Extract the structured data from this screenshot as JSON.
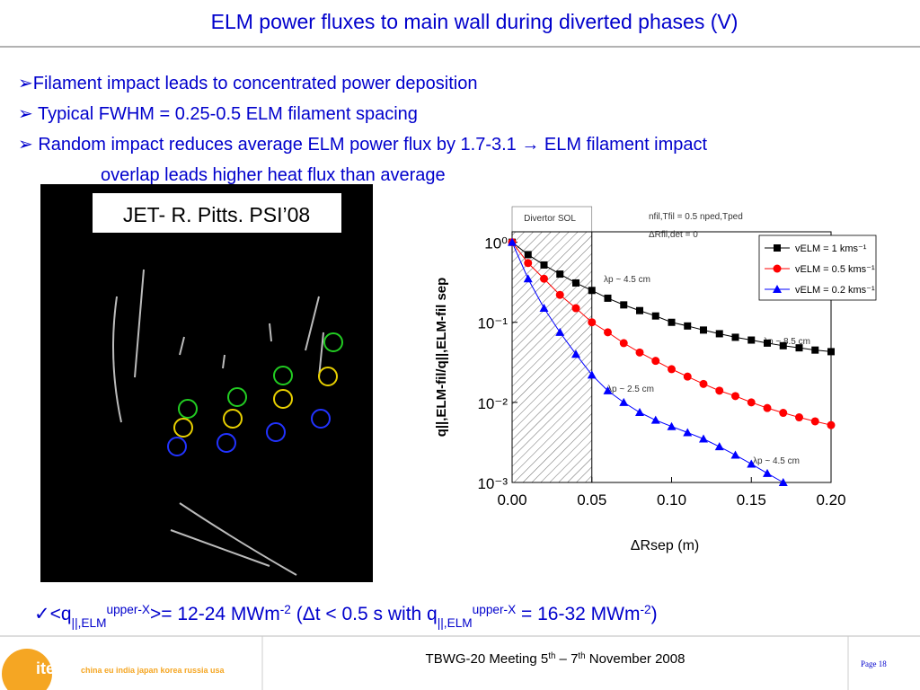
{
  "title": "ELM power fluxes to main wall during diverted phases (V)",
  "bullets": [
    [
      "➢Filament impact leads to concentrated power deposition"
    ],
    [
      "➢ Typical FWHM = 0.25-0.5 ELM filament spacing"
    ],
    [
      "➢ Random impact reduces average ELM power flux by 1.7-3.1 → ELM filament impact",
      "overlap leads higher heat flux than average"
    ]
  ],
  "image_label": "JET- R. Pitts. PSI’08",
  "result_line": [
    {
      "t": "✓<q"
    },
    {
      "t": "||,ELM",
      "pos": "sub"
    },
    {
      "t": "upper-X",
      "pos": "sup"
    },
    {
      "t": ">= 12-24 MWm"
    },
    {
      "t": "-2",
      "pos": "sup"
    },
    {
      "t": " (Δt < 0.5 s with q"
    },
    {
      "t": "||,ELM",
      "pos": "sub"
    },
    {
      "t": "upper-X",
      "pos": "sup"
    },
    {
      "t": " = 16-32 MWm"
    },
    {
      "t": "-2",
      "pos": "sup"
    },
    {
      "t": ")"
    }
  ],
  "footer": {
    "logo": "iter",
    "partners": "china eu india japan korea russia usa",
    "meeting": [
      {
        "t": "TBWG-20 Meeting 5"
      },
      {
        "t": "th",
        "pos": "sup"
      },
      {
        "t": " – 7"
      },
      {
        "t": "th",
        "pos": "sup"
      },
      {
        "t": " November 2008"
      }
    ],
    "page": "Page 18"
  },
  "chart_data": {
    "type": "line",
    "log_y": true,
    "xlabel": "ΔRsep (m)",
    "ylabel": "q||,ELM-fil/q||,ELM-fil sep",
    "annotations": [
      "Divertor SOL",
      "nfil,Tfil = 0.5 nped,Tped",
      "ΔRfil,det = 0",
      "λp ~ 4.5 cm",
      "λp ~ 8.5 cm",
      "λp ~ 2.5 cm",
      "λp ~ 4.5 cm"
    ],
    "sol_region": [
      0,
      0.05
    ],
    "x": [
      0,
      0.01,
      0.02,
      0.03,
      0.04,
      0.05,
      0.06,
      0.07,
      0.08,
      0.09,
      0.1,
      0.11,
      0.12,
      0.13,
      0.14,
      0.15,
      0.16,
      0.17,
      0.18,
      0.19,
      0.2
    ],
    "series": [
      {
        "name": "vELM = 1 kms⁻¹",
        "color": "#000000",
        "marker": "square",
        "values": [
          1,
          0.7,
          0.52,
          0.4,
          0.31,
          0.25,
          0.2,
          0.165,
          0.14,
          0.12,
          0.1,
          0.09,
          0.08,
          0.072,
          0.065,
          0.06,
          0.055,
          0.051,
          0.048,
          0.045,
          0.043
        ]
      },
      {
        "name": "vELM = 0.5 kms⁻¹",
        "color": "#ff0000",
        "marker": "circle",
        "values": [
          1,
          0.55,
          0.35,
          0.22,
          0.15,
          0.1,
          0.075,
          0.055,
          0.042,
          0.033,
          0.026,
          0.021,
          0.017,
          0.014,
          0.012,
          0.01,
          0.0085,
          0.0074,
          0.0065,
          0.0058,
          0.0052
        ]
      },
      {
        "name": "vELM = 0.2 kms⁻¹",
        "color": "#0000ff",
        "marker": "triangle",
        "values": [
          1,
          0.35,
          0.15,
          0.075,
          0.04,
          0.022,
          0.014,
          0.01,
          0.0075,
          0.006,
          0.005,
          0.0042,
          0.0035,
          0.0028,
          0.0022,
          0.0017,
          0.0013,
          0.001,
          null,
          null,
          null
        ]
      }
    ],
    "xlim": [
      0,
      0.2
    ],
    "ylim": [
      0.001,
      1.35
    ],
    "xticks": [
      {
        "value": 0,
        "label": "0.00"
      },
      {
        "value": 0.05,
        "label": "0.05"
      },
      {
        "value": 0.1,
        "label": "0.10"
      },
      {
        "value": 0.15,
        "label": "0.15"
      },
      {
        "value": 0.2,
        "label": "0.20"
      }
    ],
    "yticks": [
      {
        "value": 1,
        "label": "10⁰"
      },
      {
        "value": 0.1,
        "label": "10⁻¹"
      },
      {
        "value": 0.01,
        "label": "10⁻²"
      },
      {
        "value": 0.001,
        "label": "10⁻³"
      }
    ],
    "legend": "upper right"
  }
}
